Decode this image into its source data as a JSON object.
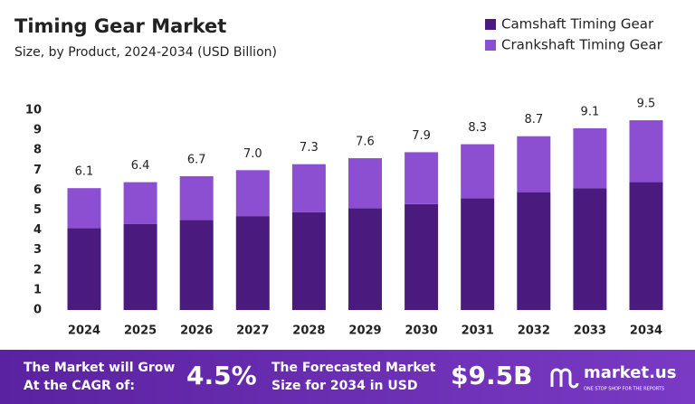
{
  "chart_data": {
    "type": "bar",
    "stacked": true,
    "title": "Timing Gear Market",
    "subtitle": "Size, by Product, 2024-2034 (USD Billion)",
    "categories": [
      "2024",
      "2025",
      "2026",
      "2027",
      "2028",
      "2029",
      "2030",
      "2031",
      "2032",
      "2033",
      "2034"
    ],
    "series": [
      {
        "name": "Camshaft Timing Gear",
        "color": "#4b1a7f",
        "values": [
          4.1,
          4.3,
          4.5,
          4.7,
          4.9,
          5.1,
          5.3,
          5.6,
          5.9,
          6.1,
          6.4
        ]
      },
      {
        "name": "Crankshaft Timing Gear",
        "color": "#8d4fd2",
        "values": [
          2.0,
          2.1,
          2.2,
          2.3,
          2.4,
          2.5,
          2.6,
          2.7,
          2.8,
          3.0,
          3.1
        ]
      }
    ],
    "total_labels": [
      "6.1",
      "6.4",
      "6.7",
      "7.0",
      "7.3",
      "7.6",
      "7.9",
      "8.3",
      "8.7",
      "9.1",
      "9.5"
    ],
    "ylim": [
      0,
      10
    ],
    "yticks": [
      0,
      1,
      2,
      3,
      4,
      5,
      6,
      7,
      8,
      9,
      10
    ],
    "grid": false,
    "legend": "top-right"
  },
  "footer": {
    "cagr_line1": "The Market will Grow",
    "cagr_line2": "At the CAGR of:",
    "cagr_value": "4.5%",
    "forecast_line1": "The Forecasted Market",
    "forecast_line2": "Size for 2034 in USD",
    "forecast_value": "$9.5B",
    "brand": "market.us",
    "tagline": "ONE STOP SHOP FOR THE REPORTS"
  }
}
